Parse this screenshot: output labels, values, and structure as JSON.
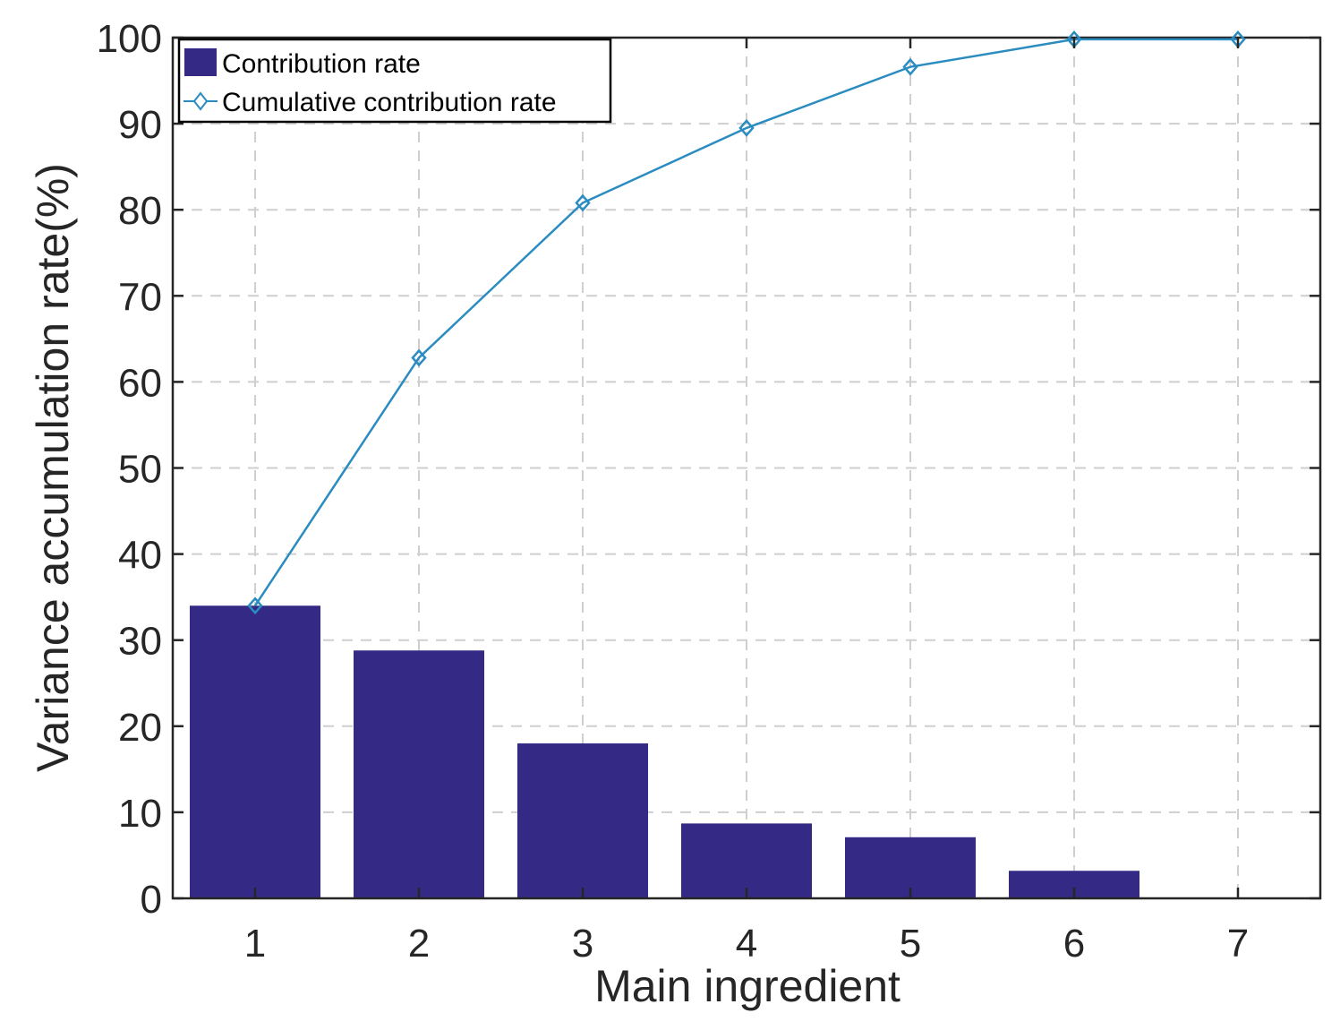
{
  "chart_data": {
    "type": "bar",
    "categories": [
      "1",
      "2",
      "3",
      "4",
      "5",
      "6",
      "7"
    ],
    "series": [
      {
        "name": "Contribution rate",
        "type": "bar",
        "values": [
          34.0,
          28.8,
          18.0,
          8.7,
          7.1,
          3.2,
          0.0
        ],
        "color": "#342a85"
      },
      {
        "name": "Cumulative contribution rate",
        "type": "line",
        "marker": "diamond",
        "values": [
          34.0,
          62.8,
          80.8,
          89.5,
          96.6,
          99.8,
          99.8
        ],
        "color": "#2a8cc0"
      }
    ],
    "xlabel": "Main ingredient",
    "ylabel": "Variance accumulation rate(%)",
    "ylim": [
      0,
      100
    ],
    "yticks": [
      0,
      10,
      20,
      30,
      40,
      50,
      60,
      70,
      80,
      90,
      100
    ],
    "xticks": [
      "1",
      "2",
      "3",
      "4",
      "5",
      "6",
      "7"
    ],
    "grid": true,
    "legend_position": "top-left"
  }
}
